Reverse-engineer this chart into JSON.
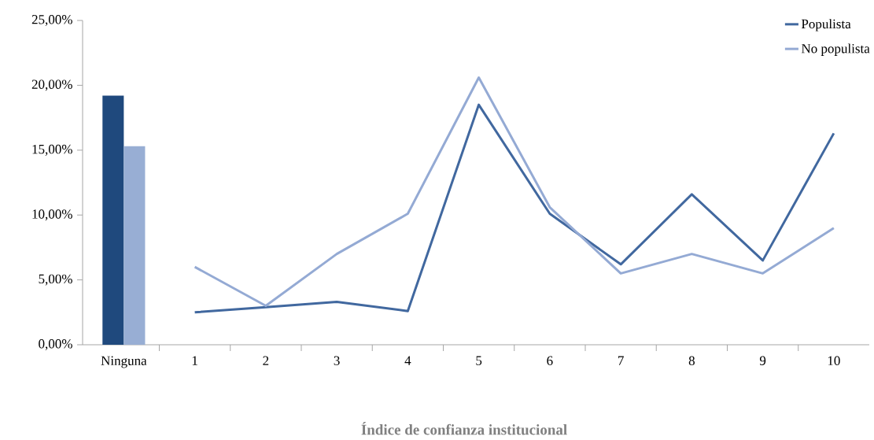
{
  "chart_data": {
    "type": "line",
    "xlabel": "Índice de confianza institucional",
    "categories": [
      "Ninguna",
      "1",
      "2",
      "3",
      "4",
      "5",
      "6",
      "7",
      "8",
      "9",
      "10"
    ],
    "series": [
      {
        "type": "bar",
        "color": "#1f497d",
        "values": [
          19.2,
          null,
          null,
          null,
          null,
          null,
          null,
          null,
          null,
          null,
          null
        ]
      },
      {
        "type": "bar",
        "color": "#98aed4",
        "values": [
          15.3,
          null,
          null,
          null,
          null,
          null,
          null,
          null,
          null,
          null,
          null
        ]
      },
      {
        "name": "Populista",
        "color": "#41689f",
        "values": [
          null,
          2.5,
          2.9,
          3.3,
          2.6,
          18.5,
          10.1,
          6.2,
          11.6,
          6.5,
          16.3
        ]
      },
      {
        "name": "No populista",
        "color": "#94aad4",
        "values": [
          null,
          6.0,
          3.0,
          7.0,
          10.1,
          20.6,
          10.6,
          5.5,
          7.0,
          5.5,
          9.0
        ]
      }
    ],
    "ylim": [
      0,
      25
    ],
    "yticks": [
      {
        "value": 0,
        "label": "0,00%"
      },
      {
        "value": 5,
        "label": "5,00%"
      },
      {
        "value": 10,
        "label": "10,00%"
      },
      {
        "value": 15,
        "label": "15,00%"
      },
      {
        "value": 20,
        "label": "20,00%"
      },
      {
        "value": 25,
        "label": "25,00%"
      }
    ],
    "grid": false,
    "legend": "top right",
    "marker": "none",
    "line_style": "solid"
  }
}
